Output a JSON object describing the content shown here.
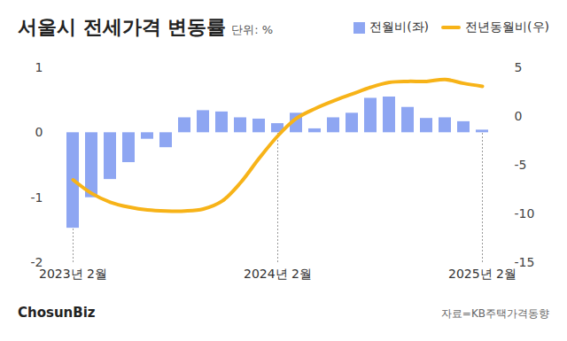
{
  "chart_data": {
    "type": "bar",
    "title": "서울시 전세가격 변동률",
    "subtitle": "단위: %",
    "brand": "ChosunBiz",
    "source": "자료=KB주택가격동향",
    "categories": [
      "2023년 2월",
      null,
      null,
      null,
      null,
      null,
      null,
      null,
      null,
      null,
      null,
      "2024년 2월",
      null,
      null,
      null,
      null,
      null,
      null,
      null,
      null,
      null,
      null,
      "2025년 2월"
    ],
    "series": [
      {
        "name": "전월비(좌)",
        "type": "bar",
        "color": "#8ea6f2",
        "values": [
          -1.47,
          -1.0,
          -0.72,
          -0.46,
          -0.1,
          -0.23,
          0.23,
          0.34,
          0.32,
          0.23,
          0.21,
          0.14,
          0.3,
          0.06,
          0.23,
          0.3,
          0.53,
          0.55,
          0.39,
          0.22,
          0.23,
          0.17,
          0.04
        ]
      },
      {
        "name": "전년동월비(우)",
        "type": "line",
        "color": "#f7b318",
        "axis": "y2",
        "values": [
          -6.5,
          -7.9,
          -8.8,
          -9.3,
          -9.6,
          -9.7,
          -9.7,
          -9.5,
          -8.7,
          -6.8,
          -4.3,
          -2.0,
          -0.2,
          0.8,
          1.6,
          2.3,
          3.0,
          3.5,
          3.6,
          3.6,
          3.8,
          3.4,
          3.1
        ]
      }
    ],
    "ylim": [
      -2,
      1
    ],
    "yticks": [
      -2,
      -1,
      0,
      1
    ],
    "y2lim": [
      -15,
      5
    ],
    "y2ticks": [
      -15,
      -10,
      -5,
      0,
      5
    ],
    "legend": "top-right"
  }
}
